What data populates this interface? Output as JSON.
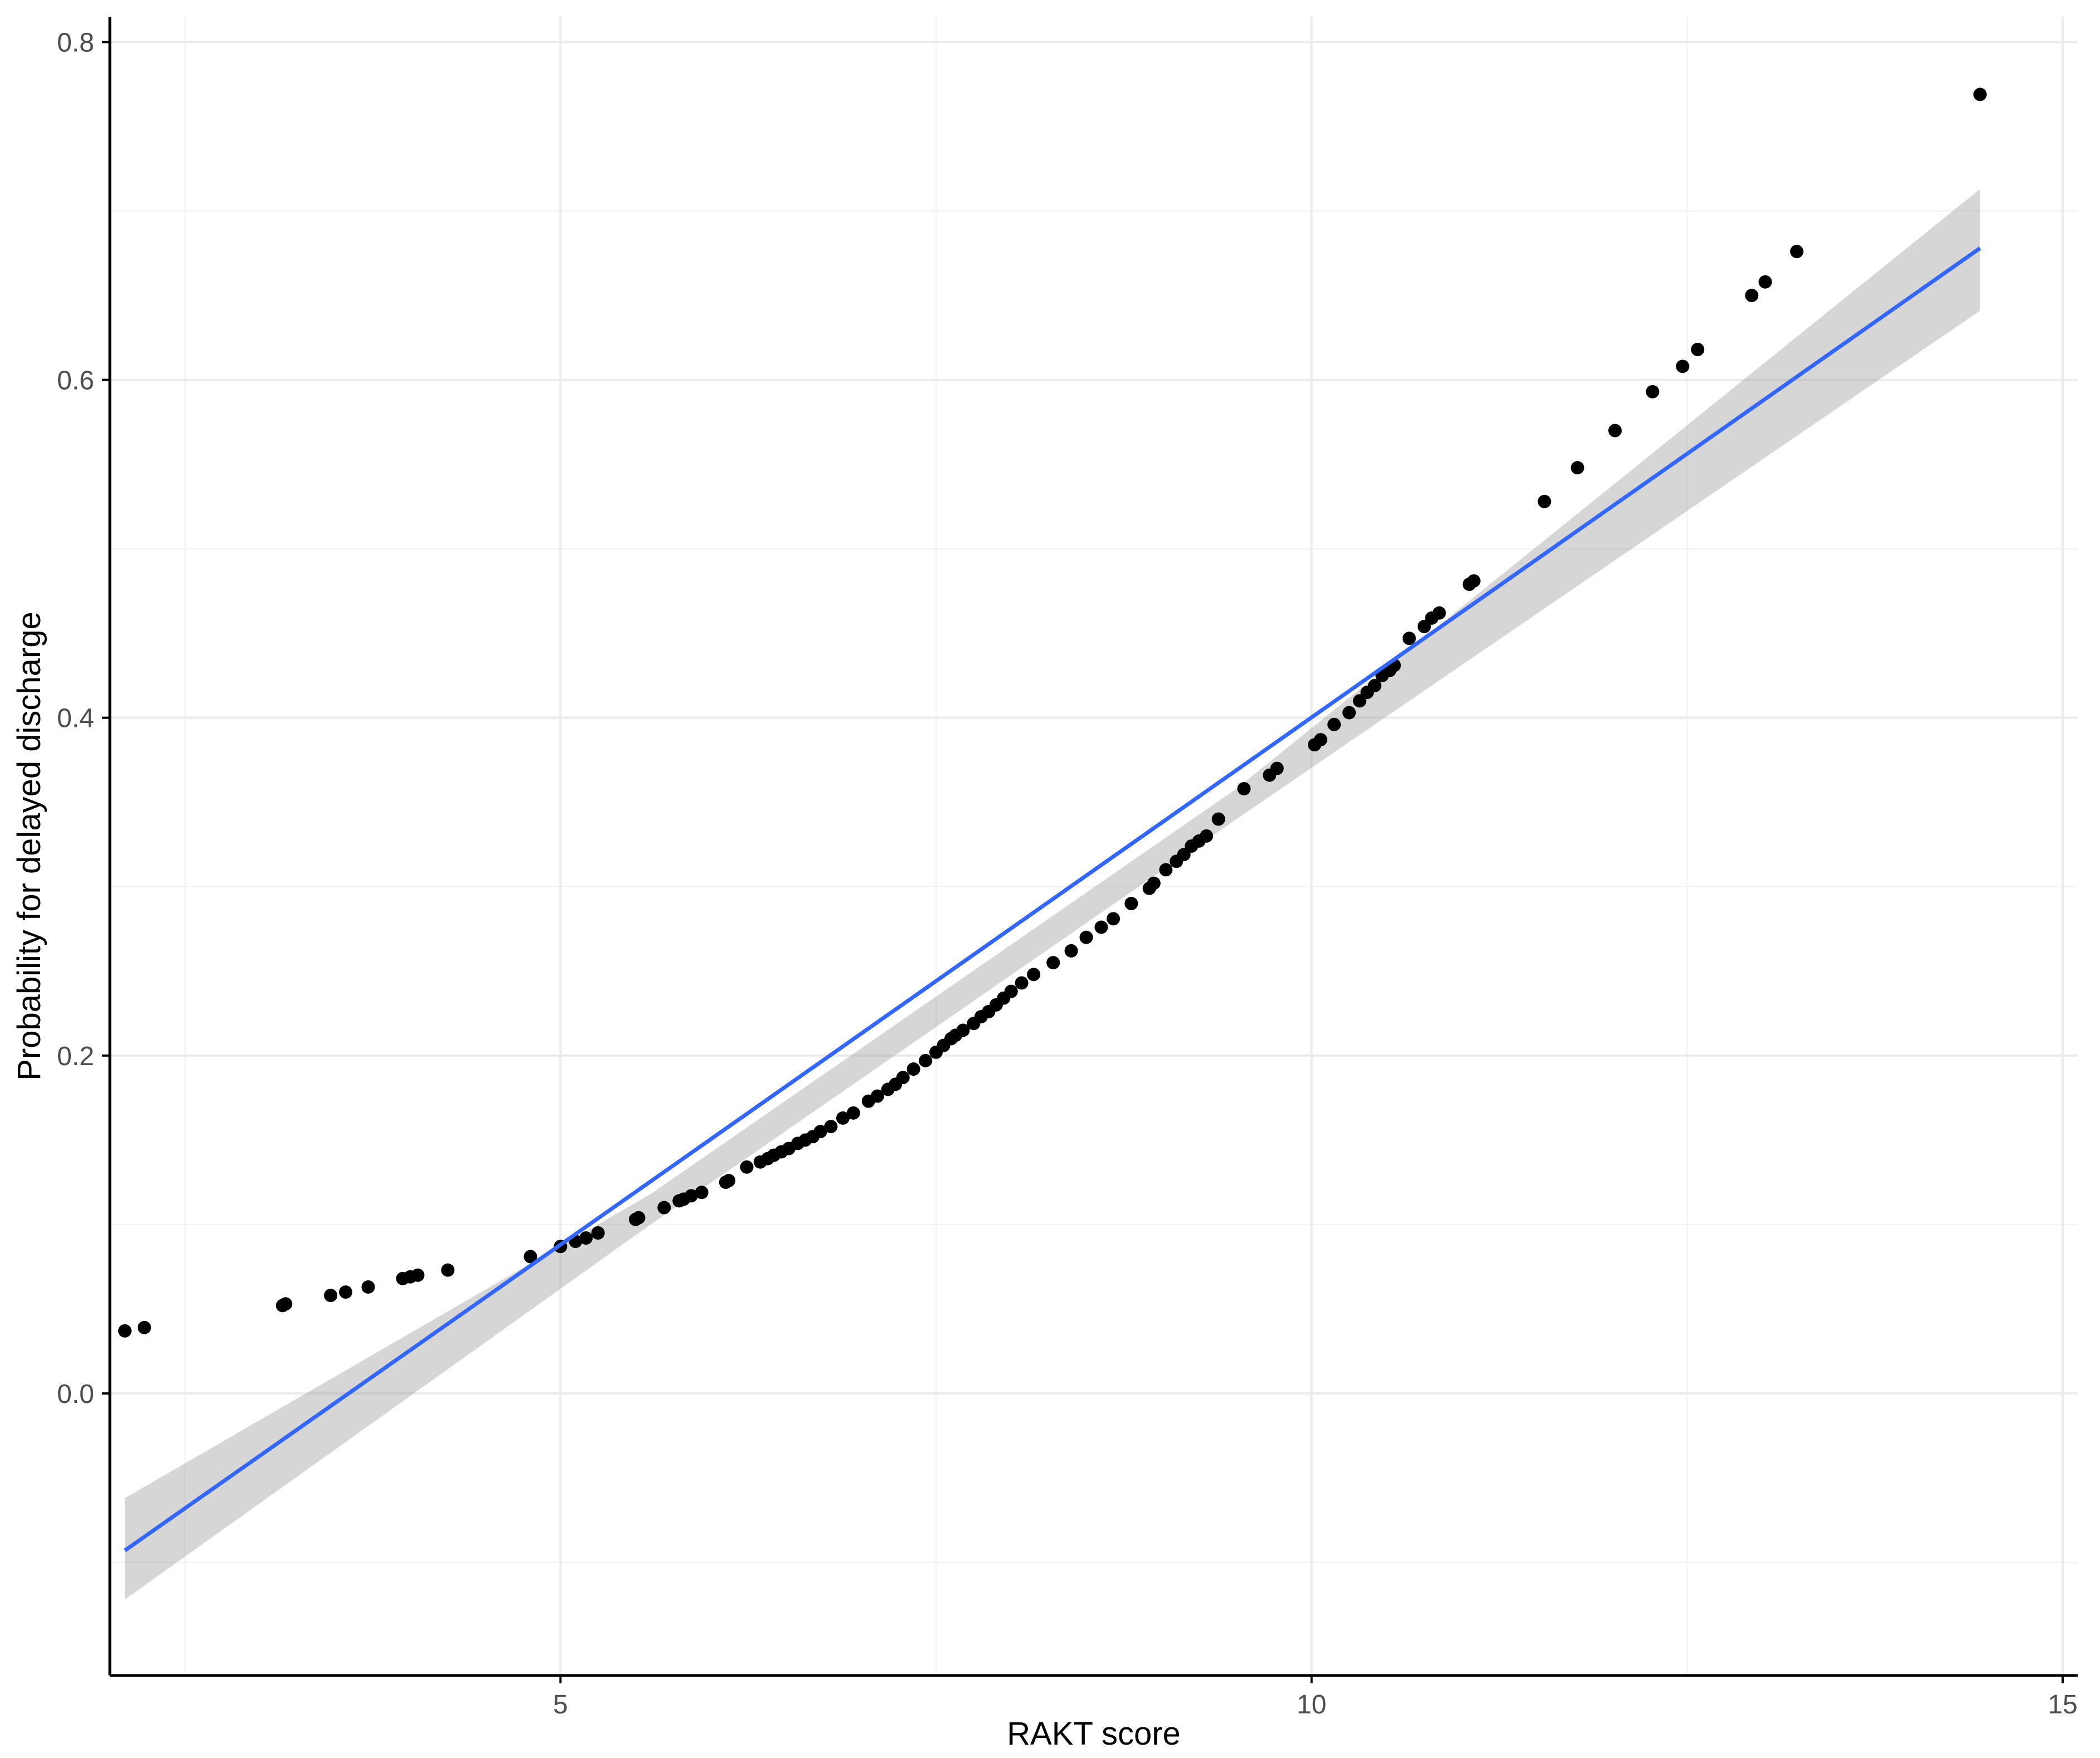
{
  "chart_data": {
    "type": "scatter",
    "xlabel": "RAKT score",
    "ylabel": "Probability for delayed discharge",
    "xlim": [
      2.0,
      15.1
    ],
    "ylim": [
      -0.167,
      0.815
    ],
    "x_ticks": [
      5,
      10,
      15
    ],
    "x_tick_labels": [
      "5",
      "10",
      "15"
    ],
    "y_ticks": [
      0.0,
      0.2,
      0.4,
      0.6,
      0.8
    ],
    "y_tick_labels": [
      "0.0",
      "0.2",
      "0.4",
      "0.6",
      "0.8"
    ],
    "grid": true,
    "colors": {
      "points": "#000000",
      "fit_line": "#3366ff",
      "confidence_band": "#999999"
    },
    "series": [
      {
        "kind": "points",
        "x": [
          2.1,
          2.23,
          3.15,
          3.17,
          3.47,
          3.57,
          3.72,
          3.95,
          4.0,
          4.05,
          4.25,
          4.8,
          5.0,
          5.1,
          5.17,
          5.25,
          5.5,
          5.52,
          5.69,
          5.79,
          5.82,
          5.87,
          5.94,
          6.1,
          6.12,
          6.24,
          6.33,
          6.38,
          6.42,
          6.47,
          6.52,
          6.58,
          6.63,
          6.68,
          6.73,
          6.8,
          6.88,
          6.95,
          7.05,
          7.11,
          7.18,
          7.23,
          7.28,
          7.35,
          7.43,
          7.5,
          7.55,
          7.6,
          7.63,
          7.68,
          7.75,
          7.8,
          7.85,
          7.9,
          7.95,
          8.0,
          8.07,
          8.15,
          8.28,
          8.4,
          8.5,
          8.6,
          8.68,
          8.8,
          8.92,
          8.95,
          9.03,
          9.1,
          9.15,
          9.2,
          9.25,
          9.3,
          9.38,
          9.55,
          9.72,
          9.77,
          10.02,
          10.06,
          10.15,
          10.25,
          10.32,
          10.37,
          10.42,
          10.47,
          10.52,
          10.55,
          10.65,
          10.75,
          10.8,
          10.85,
          11.05,
          11.08,
          11.55,
          11.77,
          12.02,
          12.27,
          12.47,
          12.57,
          12.93,
          13.02,
          13.23,
          14.45
        ],
        "y": [
          0.037,
          0.039,
          0.052,
          0.053,
          0.058,
          0.06,
          0.063,
          0.068,
          0.069,
          0.07,
          0.073,
          0.081,
          0.087,
          0.09,
          0.092,
          0.095,
          0.103,
          0.104,
          0.11,
          0.114,
          0.115,
          0.117,
          0.119,
          0.125,
          0.126,
          0.134,
          0.137,
          0.139,
          0.141,
          0.143,
          0.145,
          0.148,
          0.15,
          0.152,
          0.155,
          0.158,
          0.163,
          0.166,
          0.173,
          0.176,
          0.18,
          0.183,
          0.187,
          0.192,
          0.197,
          0.202,
          0.206,
          0.21,
          0.212,
          0.215,
          0.219,
          0.223,
          0.226,
          0.23,
          0.234,
          0.238,
          0.243,
          0.248,
          0.255,
          0.262,
          0.27,
          0.276,
          0.281,
          0.29,
          0.299,
          0.302,
          0.31,
          0.315,
          0.319,
          0.324,
          0.327,
          0.33,
          0.34,
          0.358,
          0.366,
          0.37,
          0.384,
          0.387,
          0.396,
          0.403,
          0.41,
          0.415,
          0.419,
          0.425,
          0.428,
          0.431,
          0.447,
          0.454,
          0.459,
          0.462,
          0.479,
          0.481,
          0.528,
          0.548,
          0.57,
          0.593,
          0.608,
          0.618,
          0.65,
          0.658,
          0.676,
          0.769
        ]
      },
      {
        "kind": "fit_line",
        "x": [
          2.1,
          14.45
        ],
        "y": [
          -0.093,
          0.678
        ]
      },
      {
        "kind": "confidence_band",
        "x": [
          2.1,
          5.6,
          9.5,
          14.45
        ],
        "lower": [
          -0.122,
          0.1,
          0.34,
          0.641
        ],
        "upper": [
          -0.062,
          0.118,
          0.358,
          0.713
        ]
      }
    ]
  }
}
